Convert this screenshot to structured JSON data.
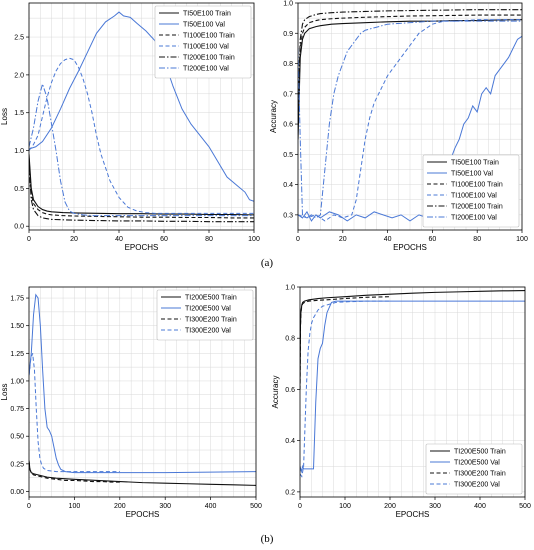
{
  "captions": [
    "(a)",
    "(b)"
  ],
  "colors": {
    "train": "#111111",
    "val": "#4a78d6",
    "grid": "#d9d9d9"
  },
  "chart_data": [
    {
      "type": "line",
      "xlabel": "EPOCHS",
      "ylabel": "Loss",
      "xlim": [
        0,
        100
      ],
      "ylim": [
        -0.05,
        2.95
      ],
      "xticks": [
        0,
        20,
        40,
        60,
        80,
        100
      ],
      "yticks": [
        0.0,
        0.5,
        1.0,
        1.5,
        2.0,
        2.5
      ],
      "grid": true,
      "legend_position": "top-right",
      "series": [
        {
          "name": "TI50E100 Train",
          "style": "solid",
          "color": "train",
          "x": [
            0,
            1,
            2,
            4,
            6,
            8,
            10,
            15,
            20,
            30,
            40,
            50,
            60,
            70,
            80,
            90,
            100
          ],
          "y": [
            0.95,
            0.5,
            0.35,
            0.26,
            0.22,
            0.2,
            0.19,
            0.18,
            0.175,
            0.17,
            0.165,
            0.165,
            0.16,
            0.16,
            0.155,
            0.155,
            0.15
          ]
        },
        {
          "name": "TI50E100 Val",
          "style": "solid",
          "color": "val",
          "x": [
            0,
            3,
            6,
            10,
            14,
            18,
            22,
            26,
            30,
            34,
            38,
            40,
            42,
            45,
            48,
            52,
            56,
            60,
            64,
            68,
            72,
            76,
            80,
            84,
            88,
            92,
            96,
            98,
            100
          ],
          "y": [
            1.02,
            1.05,
            1.12,
            1.3,
            1.55,
            1.82,
            2.05,
            2.3,
            2.55,
            2.7,
            2.78,
            2.83,
            2.78,
            2.76,
            2.68,
            2.58,
            2.45,
            2.2,
            1.85,
            1.55,
            1.35,
            1.2,
            1.05,
            0.85,
            0.65,
            0.55,
            0.45,
            0.35,
            0.33
          ]
        },
        {
          "name": "TI100E100 Train",
          "style": "dashed",
          "color": "train",
          "x": [
            0,
            1,
            2,
            4,
            6,
            8,
            10,
            15,
            20,
            30,
            40,
            50,
            60,
            70,
            80,
            90,
            100
          ],
          "y": [
            0.9,
            0.42,
            0.3,
            0.22,
            0.18,
            0.16,
            0.15,
            0.14,
            0.135,
            0.13,
            0.125,
            0.12,
            0.12,
            0.115,
            0.115,
            0.11,
            0.11
          ]
        },
        {
          "name": "TI100E100 Val",
          "style": "dashed",
          "color": "val",
          "x": [
            0,
            2,
            4,
            6,
            8,
            10,
            12,
            14,
            16,
            18,
            20,
            22,
            24,
            26,
            28,
            30,
            32,
            36,
            40,
            44,
            48,
            52,
            56,
            60,
            70,
            80,
            90,
            100
          ],
          "y": [
            1.0,
            1.08,
            1.2,
            1.45,
            1.7,
            1.9,
            2.05,
            2.15,
            2.2,
            2.22,
            2.2,
            2.1,
            1.95,
            1.75,
            1.5,
            1.2,
            0.95,
            0.6,
            0.38,
            0.25,
            0.2,
            0.18,
            0.17,
            0.17,
            0.17,
            0.17,
            0.17,
            0.17
          ]
        },
        {
          "name": "TI200E100 Train",
          "style": "dashdot",
          "color": "train",
          "x": [
            0,
            1,
            2,
            4,
            6,
            8,
            10,
            15,
            20,
            30,
            40,
            50,
            60,
            70,
            80,
            90,
            100
          ],
          "y": [
            0.8,
            0.35,
            0.22,
            0.14,
            0.11,
            0.1,
            0.09,
            0.085,
            0.08,
            0.075,
            0.07,
            0.07,
            0.065,
            0.065,
            0.06,
            0.06,
            0.06
          ]
        },
        {
          "name": "TI200E100 Val",
          "style": "dashdot",
          "color": "val",
          "x": [
            0,
            2,
            4,
            6,
            8,
            10,
            12,
            14,
            16,
            18,
            20,
            24,
            28,
            32,
            36,
            40,
            50,
            60,
            70,
            80,
            90,
            100
          ],
          "y": [
            1.05,
            1.3,
            1.65,
            1.88,
            1.7,
            1.35,
            1.0,
            0.6,
            0.32,
            0.2,
            0.17,
            0.15,
            0.14,
            0.14,
            0.14,
            0.14,
            0.14,
            0.14,
            0.14,
            0.14,
            0.14,
            0.14
          ]
        }
      ]
    },
    {
      "type": "line",
      "xlabel": "EPOCHS",
      "ylabel": "Accuracy",
      "xlim": [
        0,
        100
      ],
      "ylim": [
        0.25,
        1.0
      ],
      "xticks": [
        0,
        20,
        40,
        60,
        80,
        100
      ],
      "yticks": [
        0.3,
        0.4,
        0.5,
        0.6,
        0.7,
        0.8,
        0.9,
        1.0
      ],
      "grid": true,
      "legend_position": "bottom-right",
      "series": [
        {
          "name": "TI50E100 Train",
          "style": "solid",
          "color": "train",
          "x": [
            0,
            1,
            2,
            3,
            5,
            8,
            10,
            15,
            20,
            30,
            40,
            50,
            60,
            70,
            80,
            90,
            100
          ],
          "y": [
            0.55,
            0.82,
            0.88,
            0.9,
            0.915,
            0.922,
            0.925,
            0.93,
            0.932,
            0.935,
            0.938,
            0.94,
            0.94,
            0.942,
            0.942,
            0.944,
            0.945
          ]
        },
        {
          "name": "TI50E100 Val",
          "style": "solid",
          "color": "val",
          "x": [
            0,
            2,
            4,
            6,
            8,
            10,
            14,
            18,
            22,
            26,
            30,
            34,
            38,
            42,
            46,
            50,
            54,
            58,
            62,
            64,
            66,
            68,
            70,
            72,
            74,
            76,
            78,
            80,
            82,
            84,
            86,
            88,
            90,
            92,
            94,
            96,
            98,
            100
          ],
          "y": [
            0.3,
            0.29,
            0.31,
            0.28,
            0.3,
            0.29,
            0.31,
            0.3,
            0.28,
            0.3,
            0.29,
            0.31,
            0.3,
            0.29,
            0.3,
            0.28,
            0.3,
            0.29,
            0.31,
            0.35,
            0.42,
            0.48,
            0.52,
            0.55,
            0.6,
            0.62,
            0.66,
            0.64,
            0.7,
            0.72,
            0.7,
            0.76,
            0.78,
            0.8,
            0.82,
            0.85,
            0.88,
            0.89
          ]
        },
        {
          "name": "TI100E100 Train",
          "style": "dashed",
          "color": "train",
          "x": [
            0,
            1,
            2,
            3,
            5,
            8,
            10,
            15,
            20,
            30,
            40,
            50,
            60,
            70,
            80,
            90,
            100
          ],
          "y": [
            0.6,
            0.85,
            0.9,
            0.92,
            0.935,
            0.942,
            0.945,
            0.948,
            0.95,
            0.953,
            0.955,
            0.957,
            0.958,
            0.959,
            0.96,
            0.96,
            0.96
          ]
        },
        {
          "name": "TI100E100 Val",
          "style": "dashed",
          "color": "val",
          "x": [
            0,
            4,
            8,
            12,
            16,
            20,
            24,
            26,
            28,
            30,
            32,
            34,
            36,
            38,
            40,
            42,
            44,
            46,
            48,
            50,
            52,
            54,
            56,
            58,
            60,
            65,
            70,
            80,
            90,
            100
          ],
          "y": [
            0.3,
            0.29,
            0.3,
            0.28,
            0.3,
            0.29,
            0.3,
            0.35,
            0.45,
            0.55,
            0.62,
            0.67,
            0.7,
            0.73,
            0.76,
            0.78,
            0.8,
            0.82,
            0.84,
            0.86,
            0.88,
            0.9,
            0.91,
            0.92,
            0.93,
            0.94,
            0.94,
            0.945,
            0.945,
            0.945
          ]
        },
        {
          "name": "TI200E100 Train",
          "style": "dashdot",
          "color": "train",
          "x": [
            0,
            1,
            2,
            3,
            5,
            8,
            10,
            15,
            20,
            30,
            40,
            50,
            60,
            70,
            80,
            90,
            100
          ],
          "y": [
            0.65,
            0.88,
            0.93,
            0.945,
            0.955,
            0.962,
            0.965,
            0.968,
            0.97,
            0.972,
            0.974,
            0.975,
            0.976,
            0.977,
            0.978,
            0.978,
            0.978
          ]
        },
        {
          "name": "TI200E100 Val",
          "style": "dashdot",
          "color": "val",
          "x": [
            0,
            1,
            2,
            4,
            6,
            8,
            10,
            12,
            14,
            16,
            18,
            20,
            22,
            24,
            26,
            28,
            30,
            35,
            40,
            50,
            60,
            70,
            80,
            90,
            100
          ],
          "y": [
            0.85,
            0.55,
            0.3,
            0.29,
            0.3,
            0.29,
            0.3,
            0.45,
            0.6,
            0.7,
            0.76,
            0.8,
            0.84,
            0.86,
            0.88,
            0.9,
            0.91,
            0.92,
            0.93,
            0.935,
            0.94,
            0.94,
            0.94,
            0.94,
            0.94
          ]
        }
      ]
    },
    {
      "type": "line",
      "xlabel": "EPOCHS",
      "ylabel": "Loss",
      "xlim": [
        0,
        500
      ],
      "ylim": [
        -0.05,
        1.85
      ],
      "xticks": [
        0,
        100,
        200,
        300,
        400,
        500
      ],
      "yticks": [
        0.0,
        0.25,
        0.5,
        0.75,
        1.0,
        1.25,
        1.5,
        1.75
      ],
      "grid": true,
      "legend_position": "top-right",
      "series": [
        {
          "name": "TI200E500 Train",
          "style": "solid",
          "color": "train",
          "x": [
            0,
            2,
            5,
            10,
            20,
            40,
            60,
            100,
            150,
            200,
            250,
            300,
            350,
            400,
            450,
            500
          ],
          "y": [
            0.28,
            0.2,
            0.17,
            0.16,
            0.15,
            0.13,
            0.12,
            0.11,
            0.1,
            0.09,
            0.08,
            0.075,
            0.07,
            0.065,
            0.06,
            0.055
          ]
        },
        {
          "name": "TI200E500 Val",
          "style": "solid",
          "color": "val",
          "x": [
            0,
            5,
            10,
            15,
            20,
            25,
            30,
            35,
            40,
            45,
            50,
            55,
            60,
            65,
            70,
            80,
            100,
            150,
            200,
            300,
            400,
            500
          ],
          "y": [
            1.05,
            1.25,
            1.6,
            1.78,
            1.75,
            1.5,
            1.1,
            0.75,
            0.58,
            0.55,
            0.5,
            0.4,
            0.3,
            0.24,
            0.2,
            0.18,
            0.17,
            0.17,
            0.17,
            0.17,
            0.175,
            0.18
          ]
        },
        {
          "name": "TI300E200 Train",
          "style": "dashed",
          "color": "train",
          "x": [
            0,
            2,
            5,
            10,
            20,
            40,
            60,
            80,
            100,
            120,
            140,
            160,
            180,
            200
          ],
          "y": [
            0.27,
            0.2,
            0.17,
            0.15,
            0.14,
            0.12,
            0.11,
            0.1,
            0.1,
            0.095,
            0.09,
            0.09,
            0.085,
            0.085
          ]
        },
        {
          "name": "TI300E200 Val",
          "style": "dashed",
          "color": "val",
          "x": [
            0,
            4,
            8,
            12,
            16,
            20,
            24,
            28,
            32,
            36,
            40,
            50,
            60,
            80,
            100,
            150,
            200
          ],
          "y": [
            1.05,
            1.2,
            1.25,
            1.1,
            0.75,
            0.45,
            0.3,
            0.24,
            0.21,
            0.2,
            0.19,
            0.185,
            0.18,
            0.18,
            0.18,
            0.18,
            0.18
          ]
        }
      ]
    },
    {
      "type": "line",
      "xlabel": "EPOCHS",
      "ylabel": "Accuracy",
      "xlim": [
        0,
        500
      ],
      "ylim": [
        0.18,
        1.0
      ],
      "xticks": [
        0,
        100,
        200,
        300,
        400,
        500
      ],
      "yticks": [
        0.2,
        0.4,
        0.6,
        0.8,
        1.0
      ],
      "grid": true,
      "legend_position": "bottom-right",
      "series": [
        {
          "name": "TI200E500 Train",
          "style": "solid",
          "color": "train",
          "x": [
            0,
            1,
            2,
            4,
            6,
            10,
            20,
            40,
            60,
            100,
            150,
            200,
            250,
            300,
            350,
            400,
            450,
            500
          ],
          "y": [
            0.62,
            0.85,
            0.9,
            0.93,
            0.94,
            0.945,
            0.95,
            0.955,
            0.958,
            0.962,
            0.968,
            0.972,
            0.976,
            0.979,
            0.981,
            0.983,
            0.985,
            0.986
          ]
        },
        {
          "name": "TI200E500 Val",
          "style": "solid",
          "color": "val",
          "x": [
            0,
            3,
            6,
            8,
            10,
            20,
            30,
            35,
            40,
            45,
            50,
            55,
            60,
            70,
            80,
            90,
            100,
            150,
            200,
            300,
            400,
            500
          ],
          "y": [
            0.3,
            0.28,
            0.3,
            0.29,
            0.29,
            0.29,
            0.29,
            0.55,
            0.72,
            0.76,
            0.78,
            0.85,
            0.9,
            0.94,
            0.945,
            0.945,
            0.945,
            0.945,
            0.945,
            0.945,
            0.945,
            0.945
          ]
        },
        {
          "name": "TI300E200 Train",
          "style": "dashed",
          "color": "train",
          "x": [
            0,
            1,
            2,
            4,
            6,
            10,
            20,
            40,
            60,
            100,
            150,
            200
          ],
          "y": [
            0.6,
            0.84,
            0.9,
            0.925,
            0.935,
            0.94,
            0.945,
            0.948,
            0.95,
            0.955,
            0.96,
            0.962
          ]
        },
        {
          "name": "TI300E200 Val",
          "style": "dashed",
          "color": "val",
          "x": [
            0,
            4,
            8,
            10,
            14,
            18,
            22,
            26,
            30,
            40,
            50,
            60,
            80,
            100,
            150,
            200
          ],
          "y": [
            0.27,
            0.26,
            0.3,
            0.4,
            0.6,
            0.75,
            0.82,
            0.86,
            0.88,
            0.91,
            0.925,
            0.93,
            0.94,
            0.942,
            0.945,
            0.945
          ]
        }
      ]
    }
  ]
}
